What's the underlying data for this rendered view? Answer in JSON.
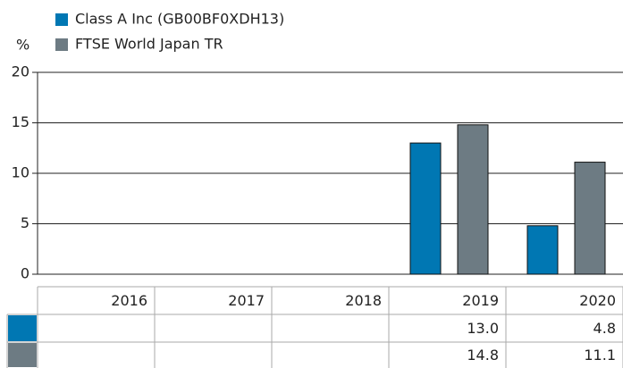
{
  "chart_data": {
    "type": "bar",
    "y_label": "%",
    "categories": [
      "2016",
      "2017",
      "2018",
      "2019",
      "2020"
    ],
    "series": [
      {
        "name": "Class A Inc (GB00BF0XDH13)",
        "color": "#0077b3",
        "values": [
          null,
          null,
          null,
          13.0,
          4.8
        ],
        "value_labels": [
          null,
          null,
          null,
          "13.0",
          "4.8"
        ]
      },
      {
        "name": "FTSE World Japan TR",
        "color": "#6d7b83",
        "values": [
          null,
          null,
          null,
          14.8,
          11.1
        ],
        "value_labels": [
          null,
          null,
          null,
          "14.8",
          "11.1"
        ]
      }
    ],
    "ylim": [
      0,
      20
    ],
    "yticks": [
      0,
      5,
      10,
      15,
      20
    ],
    "grid": true
  }
}
